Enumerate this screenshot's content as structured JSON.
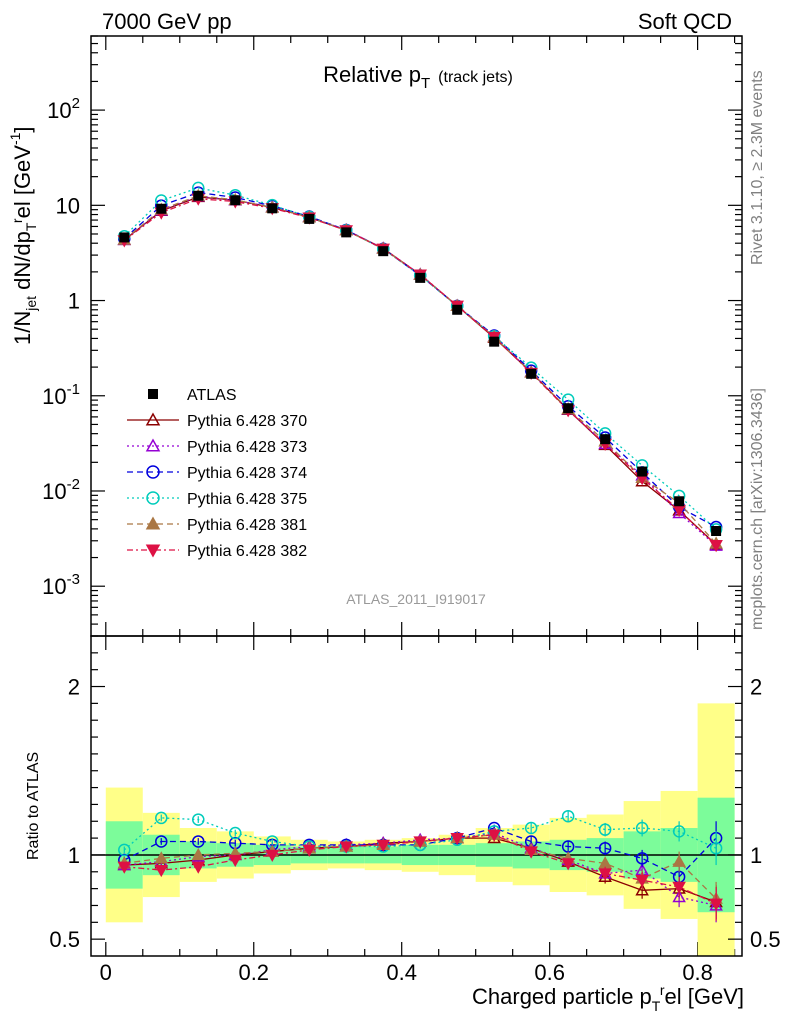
{
  "header": {
    "left": "7000 GeV pp",
    "right": "Soft QCD"
  },
  "side_labels": {
    "rivet": "Rivet 3.1.10, ≥ 2.3M events",
    "mcplots": "mcplots.cern.ch [arXiv:1306.3436]"
  },
  "watermark": "ATLAS_2011_I919017",
  "colors": {
    "data": "#000000",
    "p370": "#8b0000",
    "p373": "#9400d3",
    "p374": "#0000dd",
    "p375": "#00ccbb",
    "p381": "#aa7744",
    "p382": "#dd1144",
    "band_green": "#7cfc9a",
    "band_yellow": "#ffff88"
  },
  "chart_data": {
    "type": "line",
    "title": "Relative p_T (track jets)",
    "title_parts": {
      "main": "Relative p",
      "sub": "T",
      "small": "(track jets)"
    },
    "xlabel": "Charged particle p_T^rel [GeV]",
    "xlabel_parts": {
      "main": "Charged particle p",
      "sub": "T",
      "sup": "r",
      "tail": "el [GeV]"
    },
    "ylabel": "1/N_jet dN/dp_T^rel [GeV^-1]",
    "ylabel_parts": {
      "a": "1/N",
      "a_sub": "jet",
      "b": " dN/dp",
      "b_sub": "T",
      "b_sup": "r",
      "c": "el [GeV",
      "c_sup": "-1",
      "d": "]"
    },
    "ratio_ylabel": "Ratio to ATLAS",
    "xlim": [
      -0.02,
      0.86
    ],
    "ylim": [
      0.0003,
      600
    ],
    "yscale": "log",
    "ratio_ylim": [
      0.4,
      2.3
    ],
    "x_ticks": [
      "0",
      "0.2",
      "0.4",
      "0.6",
      "0.8"
    ],
    "y_ticks": [
      "10^-3",
      "10^-2",
      "10^-1",
      "1",
      "10",
      "10^2"
    ],
    "ratio_ticks": [
      "0.5",
      "1",
      "2"
    ],
    "legend_position": "lower-left",
    "x": [
      0.025,
      0.075,
      0.125,
      0.175,
      0.225,
      0.275,
      0.325,
      0.375,
      0.425,
      0.475,
      0.525,
      0.575,
      0.625,
      0.675,
      0.725,
      0.775,
      0.825
    ],
    "data": {
      "name": "ATLAS",
      "values": [
        4.6,
        9.2,
        12.6,
        11.3,
        9.3,
        7.2,
        5.2,
        3.3,
        1.73,
        0.8,
        0.37,
        0.17,
        0.074,
        0.035,
        0.016,
        0.0078,
        0.0038
      ],
      "band_green": [
        0.2,
        0.12,
        0.08,
        0.07,
        0.06,
        0.05,
        0.05,
        0.05,
        0.06,
        0.06,
        0.07,
        0.08,
        0.09,
        0.1,
        0.14,
        0.16,
        0.34
      ],
      "band_yellow": [
        0.4,
        0.25,
        0.16,
        0.14,
        0.11,
        0.09,
        0.08,
        0.09,
        0.1,
        0.12,
        0.16,
        0.18,
        0.22,
        0.24,
        0.32,
        0.38,
        0.9
      ]
    },
    "series": [
      {
        "name": "Pythia 6.428 370",
        "marker": "triangle-up-open",
        "dash": "",
        "color_key": "p370",
        "ratio": [
          0.94,
          0.95,
          0.97,
          1.0,
          1.02,
          1.04,
          1.05,
          1.07,
          1.08,
          1.1,
          1.1,
          1.04,
          0.96,
          0.87,
          0.79,
          0.8,
          0.72
        ],
        "ratio_err": [
          0.02,
          0.02,
          0.02,
          0.02,
          0.02,
          0.02,
          0.02,
          0.02,
          0.02,
          0.02,
          0.02,
          0.03,
          0.03,
          0.04,
          0.05,
          0.06,
          0.1
        ]
      },
      {
        "name": "Pythia 6.428 373",
        "marker": "triangle-up-open",
        "dash": "2,3",
        "color_key": "p373",
        "ratio": [
          0.94,
          0.96,
          0.99,
          1.0,
          1.03,
          1.05,
          1.06,
          1.07,
          1.09,
          1.1,
          1.13,
          1.04,
          0.97,
          0.89,
          0.91,
          0.75,
          0.7
        ],
        "ratio_err": [
          0.02,
          0.02,
          0.02,
          0.02,
          0.02,
          0.02,
          0.02,
          0.02,
          0.02,
          0.02,
          0.02,
          0.03,
          0.03,
          0.04,
          0.05,
          0.06,
          0.1
        ]
      },
      {
        "name": "Pythia 6.428 374",
        "marker": "circle-open",
        "dash": "6,4",
        "color_key": "p374",
        "ratio": [
          0.97,
          1.08,
          1.08,
          1.07,
          1.06,
          1.06,
          1.06,
          1.06,
          1.06,
          1.1,
          1.16,
          1.08,
          1.05,
          1.04,
          0.98,
          0.87,
          1.1
        ],
        "ratio_err": [
          0.02,
          0.02,
          0.02,
          0.02,
          0.02,
          0.02,
          0.02,
          0.02,
          0.02,
          0.02,
          0.02,
          0.03,
          0.03,
          0.04,
          0.05,
          0.06,
          0.1
        ]
      },
      {
        "name": "Pythia 6.428 375",
        "marker": "circle-open",
        "dash": "2,3",
        "color_key": "p375",
        "ratio": [
          1.03,
          1.22,
          1.21,
          1.13,
          1.08,
          1.05,
          1.05,
          1.05,
          1.06,
          1.09,
          1.14,
          1.16,
          1.23,
          1.15,
          1.16,
          1.14,
          1.04
        ],
        "ratio_err": [
          0.02,
          0.02,
          0.02,
          0.02,
          0.02,
          0.02,
          0.02,
          0.02,
          0.02,
          0.02,
          0.02,
          0.03,
          0.03,
          0.04,
          0.05,
          0.06,
          0.1
        ]
      },
      {
        "name": "Pythia 6.428 381",
        "marker": "triangle-up-filled",
        "dash": "6,4",
        "color_key": "p381",
        "ratio": [
          0.95,
          0.98,
          1.0,
          1.01,
          1.02,
          1.04,
          1.05,
          1.06,
          1.08,
          1.1,
          1.12,
          1.03,
          0.98,
          0.95,
          0.86,
          0.96,
          0.74
        ],
        "ratio_err": [
          0.02,
          0.02,
          0.02,
          0.02,
          0.02,
          0.02,
          0.02,
          0.02,
          0.02,
          0.02,
          0.02,
          0.03,
          0.03,
          0.04,
          0.05,
          0.06,
          0.1
        ]
      },
      {
        "name": "Pythia 6.428 382",
        "marker": "triangle-down-filled",
        "dash": "6,3,2,3",
        "color_key": "p382",
        "ratio": [
          0.93,
          0.91,
          0.93,
          0.97,
          1.0,
          1.03,
          1.05,
          1.06,
          1.08,
          1.1,
          1.12,
          1.02,
          0.95,
          0.89,
          0.85,
          0.81,
          0.71
        ],
        "ratio_err": [
          0.02,
          0.02,
          0.02,
          0.02,
          0.02,
          0.02,
          0.02,
          0.02,
          0.02,
          0.02,
          0.02,
          0.03,
          0.03,
          0.04,
          0.05,
          0.06,
          0.1
        ]
      }
    ]
  }
}
